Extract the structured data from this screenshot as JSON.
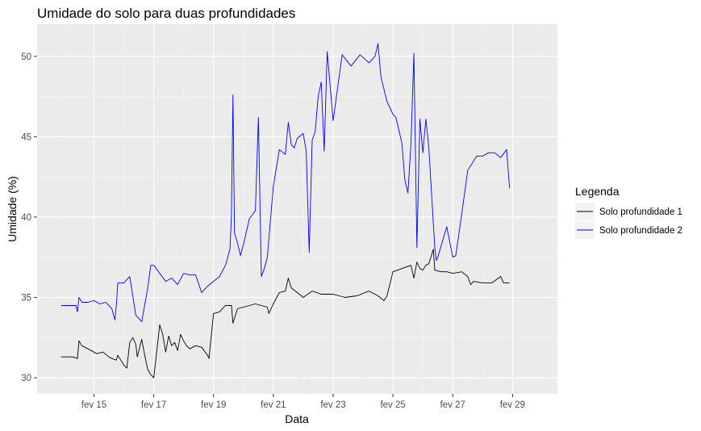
{
  "chart_data": {
    "type": "line",
    "title": "Umidade do solo para duas profundidades",
    "xlabel": "Data",
    "ylabel": "Umidade (%)",
    "x_unit": "days in February (day of month)",
    "xlim": [
      13.1,
      30.5
    ],
    "ylim": [
      29.0,
      52.0
    ],
    "x_ticks": [
      {
        "value": 15,
        "label": "fev 15"
      },
      {
        "value": 17,
        "label": "fev 17"
      },
      {
        "value": 19,
        "label": "fev 19"
      },
      {
        "value": 21,
        "label": "fev 21"
      },
      {
        "value": 23,
        "label": "fev 23"
      },
      {
        "value": 25,
        "label": "fev 25"
      },
      {
        "value": 27,
        "label": "fev 27"
      },
      {
        "value": 29,
        "label": "fev 29"
      }
    ],
    "y_ticks": [
      30,
      35,
      40,
      45,
      50
    ],
    "grid": true,
    "legend": {
      "title": "Legenda",
      "position": "right"
    },
    "series": [
      {
        "name": "Solo profundidade 1",
        "color": "#000000",
        "x": [
          13.9,
          14.3,
          14.45,
          14.5,
          14.6,
          14.9,
          15.1,
          15.3,
          15.5,
          15.6,
          15.75,
          15.8,
          15.9,
          16.0,
          16.1,
          16.2,
          16.3,
          16.4,
          16.45,
          16.6,
          16.7,
          16.8,
          16.9,
          17.0,
          17.2,
          17.3,
          17.4,
          17.5,
          17.6,
          17.7,
          17.8,
          17.9,
          18.0,
          18.1,
          18.2,
          18.4,
          18.6,
          18.8,
          18.85,
          19.0,
          19.2,
          19.4,
          19.6,
          19.65,
          19.8,
          20.0,
          20.2,
          20.4,
          20.6,
          20.8,
          20.85,
          21.0,
          21.2,
          21.4,
          21.5,
          21.6,
          21.8,
          22.0,
          22.3,
          22.6,
          23.0,
          23.4,
          23.8,
          24.2,
          24.5,
          24.7,
          24.8,
          25.0,
          25.3,
          25.6,
          25.7,
          25.8,
          25.9,
          26.0,
          26.1,
          26.2,
          26.35,
          26.4,
          26.6,
          26.8,
          27.0,
          27.3,
          27.5,
          27.6,
          27.7,
          28.0,
          28.3,
          28.6,
          28.7,
          28.9
        ],
        "y": [
          31.3,
          31.3,
          31.2,
          32.3,
          32.0,
          31.7,
          31.5,
          31.6,
          31.3,
          31.2,
          31.1,
          31.4,
          31.1,
          30.8,
          30.6,
          32.2,
          32.5,
          32.1,
          31.3,
          32.4,
          31.4,
          30.5,
          30.2,
          30.0,
          33.3,
          32.7,
          31.6,
          32.6,
          32.0,
          32.2,
          31.7,
          32.7,
          32.3,
          32.0,
          31.8,
          32.0,
          31.9,
          31.4,
          31.2,
          34.0,
          34.1,
          34.5,
          34.5,
          33.4,
          34.3,
          34.4,
          34.5,
          34.6,
          34.5,
          34.4,
          34.0,
          34.6,
          35.3,
          35.4,
          36.2,
          35.6,
          35.3,
          35.0,
          35.4,
          35.2,
          35.2,
          35.0,
          35.1,
          35.4,
          35.1,
          34.8,
          35.1,
          36.6,
          36.8,
          37.0,
          36.2,
          37.2,
          36.8,
          36.7,
          37.0,
          37.1,
          38.0,
          36.7,
          36.6,
          36.6,
          36.5,
          36.6,
          36.3,
          35.8,
          36.0,
          35.9,
          35.9,
          36.3,
          35.9,
          35.9
        ]
      },
      {
        "name": "Solo profundidade 2",
        "color": "#0000ff",
        "x": [
          13.9,
          14.2,
          14.4,
          14.45,
          14.5,
          14.6,
          14.8,
          15.0,
          15.2,
          15.4,
          15.6,
          15.7,
          15.75,
          15.8,
          16.0,
          16.2,
          16.4,
          16.6,
          16.8,
          16.9,
          17.0,
          17.2,
          17.4,
          17.6,
          17.8,
          18.0,
          18.2,
          18.4,
          18.6,
          18.8,
          19.0,
          19.2,
          19.4,
          19.55,
          19.6,
          19.65,
          19.7,
          19.8,
          19.9,
          20.0,
          20.2,
          20.4,
          20.5,
          20.6,
          20.7,
          20.8,
          21.0,
          21.2,
          21.4,
          21.5,
          21.6,
          21.7,
          21.8,
          22.0,
          22.1,
          22.2,
          22.3,
          22.4,
          22.5,
          22.6,
          22.7,
          22.8,
          23.0,
          23.3,
          23.6,
          23.9,
          24.2,
          24.4,
          24.5,
          24.6,
          24.8,
          25.0,
          25.1,
          25.3,
          25.4,
          25.5,
          25.6,
          25.7,
          25.8,
          25.9,
          26.0,
          26.1,
          26.2,
          26.4,
          26.45,
          26.5,
          26.8,
          27.0,
          27.1,
          27.3,
          27.5,
          27.8,
          28.0,
          28.2,
          28.4,
          28.6,
          28.8,
          28.9
        ],
        "y": [
          34.5,
          34.5,
          34.5,
          34.1,
          35.0,
          34.7,
          34.7,
          34.8,
          34.6,
          34.7,
          34.3,
          33.6,
          34.5,
          35.9,
          35.9,
          36.3,
          33.9,
          33.5,
          35.6,
          37.0,
          37.0,
          36.5,
          36.0,
          36.2,
          35.8,
          36.5,
          36.4,
          36.4,
          35.3,
          35.7,
          36.0,
          36.3,
          37.0,
          38.0,
          40.1,
          47.6,
          39.0,
          38.4,
          37.6,
          38.3,
          39.9,
          40.4,
          46.2,
          36.3,
          36.8,
          37.5,
          41.9,
          44.2,
          43.9,
          45.9,
          44.5,
          44.3,
          44.9,
          45.2,
          44.1,
          37.8,
          44.8,
          45.3,
          47.5,
          48.4,
          44.1,
          50.3,
          46.0,
          50.1,
          49.4,
          50.1,
          49.6,
          50.0,
          50.8,
          48.7,
          47.2,
          46.4,
          46.2,
          44.6,
          42.3,
          41.5,
          44.5,
          50.2,
          38.1,
          46.1,
          44.0,
          46.1,
          44.3,
          38.1,
          37.3,
          37.5,
          39.4,
          37.5,
          37.6,
          40.2,
          42.9,
          43.8,
          43.8,
          44.0,
          44.0,
          43.7,
          44.2,
          41.8
        ]
      }
    ]
  }
}
